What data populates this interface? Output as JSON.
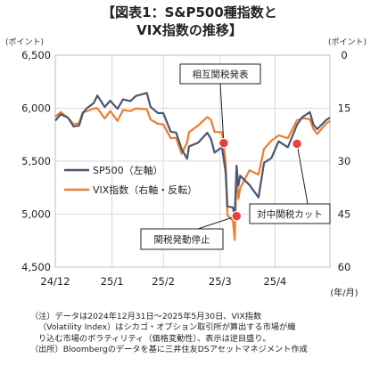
{
  "title_line1": "【図表1：S&P500種指数と",
  "title_line2": "VIX指数の推移】",
  "unit_left": "(ポイント)",
  "unit_right": "(ポイント)",
  "note_line1": "（注）データは2024年12月31日～2025年5月30日、VIX指数",
  "note_line2": "（Volatility Index）はシカゴ・オプション取引所が算出する市場が織",
  "note_line3": "り込む市場のボラティリティ（価格変動性）、表示は逆目盛り。",
  "note_line4": "（出所）Bloombergのデータを基に三井住友DSアセットマネジメント作成",
  "colors": {
    "sp500": "#4a5672",
    "vix": "#ed7d31",
    "marker": "#e8413c",
    "grid": "#d9d9d9"
  },
  "chart_data": {
    "type": "line",
    "title": "【図表1：S&P500種指数とVIX指数の推移】",
    "x_unit_label": "(年/月)",
    "x_tick_labels": [
      "24/12",
      "25/1",
      "25/2",
      "25/3",
      "25/4"
    ],
    "x_ticks": [
      "2024-12-31",
      "2025-01-31",
      "2025-02-28",
      "2025-03-31",
      "2025-04-30"
    ],
    "x_range": [
      "2024-12-31",
      "2025-05-30"
    ],
    "y_left": {
      "label": "(ポイント)",
      "range": [
        4500,
        6500
      ],
      "ticks": [
        4500,
        5000,
        5500,
        6000,
        6500
      ],
      "tick_labels": [
        "4,500",
        "5,000",
        "5,500",
        "6,000",
        "6,500"
      ]
    },
    "y_right": {
      "label": "(ポイント)",
      "range": [
        0,
        60
      ],
      "inverted": true,
      "ticks": [
        0,
        15,
        30,
        45,
        60
      ]
    },
    "grid": true,
    "legend_placement": "center-left",
    "series": [
      {
        "name": "SP500（左軸）",
        "axis": "left",
        "points": [
          [
            "2024-12-31",
            5882
          ],
          [
            "2025-01-03",
            5942
          ],
          [
            "2025-01-07",
            5909
          ],
          [
            "2025-01-10",
            5827
          ],
          [
            "2025-01-13",
            5836
          ],
          [
            "2025-01-15",
            5950
          ],
          [
            "2025-01-17",
            5997
          ],
          [
            "2025-01-21",
            6049
          ],
          [
            "2025-01-23",
            6119
          ],
          [
            "2025-01-27",
            6012
          ],
          [
            "2025-01-30",
            6071
          ],
          [
            "2025-02-03",
            5994
          ],
          [
            "2025-02-06",
            6083
          ],
          [
            "2025-02-10",
            6066
          ],
          [
            "2025-02-13",
            6115
          ],
          [
            "2025-02-19",
            6144
          ],
          [
            "2025-02-21",
            6013
          ],
          [
            "2025-02-25",
            5955
          ],
          [
            "2025-02-28",
            5954
          ],
          [
            "2025-03-04",
            5779
          ],
          [
            "2025-03-07",
            5770
          ],
          [
            "2025-03-10",
            5614
          ],
          [
            "2025-03-13",
            5522
          ],
          [
            "2025-03-14",
            5639
          ],
          [
            "2025-03-19",
            5675
          ],
          [
            "2025-03-24",
            5768
          ],
          [
            "2025-03-26",
            5712
          ],
          [
            "2025-03-28",
            5581
          ],
          [
            "2025-04-01",
            5633
          ],
          [
            "2025-04-03",
            5397
          ],
          [
            "2025-04-04",
            5074
          ],
          [
            "2025-04-07",
            5062
          ],
          [
            "2025-04-08",
            4982
          ],
          [
            "2025-04-09",
            5457
          ],
          [
            "2025-04-10",
            5268
          ],
          [
            "2025-04-11",
            5363
          ],
          [
            "2025-04-16",
            5276
          ],
          [
            "2025-04-21",
            5158
          ],
          [
            "2025-04-24",
            5485
          ],
          [
            "2025-04-28",
            5529
          ],
          [
            "2025-05-02",
            5687
          ],
          [
            "2025-05-07",
            5631
          ],
          [
            "2025-05-12",
            5844
          ],
          [
            "2025-05-15",
            5917
          ],
          [
            "2025-05-19",
            5963
          ],
          [
            "2025-05-21",
            5845
          ],
          [
            "2025-05-23",
            5802
          ],
          [
            "2025-05-28",
            5889
          ],
          [
            "2025-05-30",
            5912
          ]
        ]
      },
      {
        "name": "VIX指数（右軸・反転）",
        "axis": "right",
        "points": [
          [
            "2024-12-31",
            17.4
          ],
          [
            "2025-01-03",
            16.1
          ],
          [
            "2025-01-07",
            17.8
          ],
          [
            "2025-01-10",
            19.5
          ],
          [
            "2025-01-13",
            19.2
          ],
          [
            "2025-01-15",
            16.1
          ],
          [
            "2025-01-17",
            15.9
          ],
          [
            "2025-01-21",
            15.1
          ],
          [
            "2025-01-23",
            15.0
          ],
          [
            "2025-01-27",
            17.9
          ],
          [
            "2025-01-30",
            15.8
          ],
          [
            "2025-02-03",
            18.6
          ],
          [
            "2025-02-06",
            15.5
          ],
          [
            "2025-02-10",
            15.8
          ],
          [
            "2025-02-13",
            15.1
          ],
          [
            "2025-02-19",
            15.3
          ],
          [
            "2025-02-21",
            18.2
          ],
          [
            "2025-02-25",
            19.4
          ],
          [
            "2025-02-28",
            19.6
          ],
          [
            "2025-03-04",
            23.5
          ],
          [
            "2025-03-07",
            23.4
          ],
          [
            "2025-03-10",
            27.9
          ],
          [
            "2025-03-13",
            24.7
          ],
          [
            "2025-03-14",
            21.8
          ],
          [
            "2025-03-19",
            19.9
          ],
          [
            "2025-03-24",
            17.5
          ],
          [
            "2025-03-26",
            18.3
          ],
          [
            "2025-03-28",
            21.7
          ],
          [
            "2025-04-01",
            21.8
          ],
          [
            "2025-04-03",
            30.0
          ],
          [
            "2025-04-04",
            45.3
          ],
          [
            "2025-04-07",
            46.9
          ],
          [
            "2025-04-08",
            52.3
          ],
          [
            "2025-04-09",
            33.6
          ],
          [
            "2025-04-10",
            40.7
          ],
          [
            "2025-04-11",
            37.6
          ],
          [
            "2025-04-16",
            32.6
          ],
          [
            "2025-04-21",
            33.8
          ],
          [
            "2025-04-24",
            26.5
          ],
          [
            "2025-04-28",
            24.2
          ],
          [
            "2025-05-02",
            22.7
          ],
          [
            "2025-05-07",
            23.5
          ],
          [
            "2025-05-12",
            18.4
          ],
          [
            "2025-05-15",
            17.8
          ],
          [
            "2025-05-19",
            18.1
          ],
          [
            "2025-05-21",
            20.9
          ],
          [
            "2025-05-23",
            22.3
          ],
          [
            "2025-05-28",
            19.3
          ],
          [
            "2025-05-30",
            18.6
          ]
        ]
      }
    ],
    "annotations": [
      {
        "text": "相互関税発表",
        "date": "2025-04-02",
        "value": 5671,
        "axis": "left"
      },
      {
        "text": "関税発動停止",
        "date": "2025-04-09",
        "value": 4982,
        "axis": "left"
      },
      {
        "text": "対中関税カット",
        "date": "2025-05-12",
        "value": 5664,
        "axis": "left"
      }
    ]
  }
}
